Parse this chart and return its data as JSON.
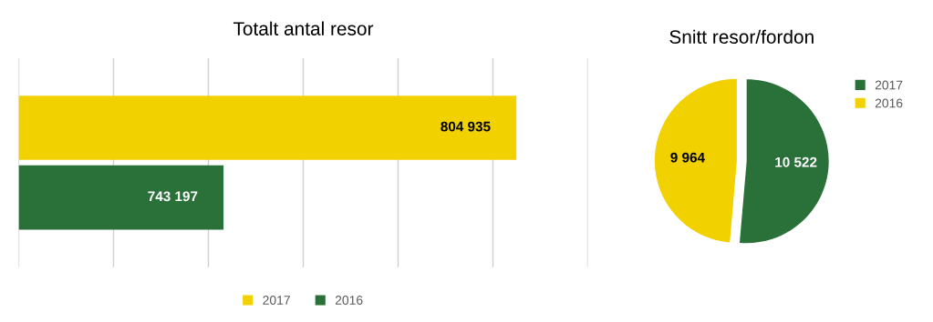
{
  "chart_data": [
    {
      "type": "bar",
      "title": "Totalt antal resor",
      "orientation": "horizontal",
      "categories": [
        null
      ],
      "series": [
        {
          "name": "2017",
          "color": "#f2d100",
          "values": [
            804935
          ]
        },
        {
          "name": "2016",
          "color": "#2a7139",
          "values": [
            743197
          ]
        }
      ],
      "xlim": [
        700000,
        820000
      ],
      "xticks": [
        {
          "value": 700000,
          "label": null
        },
        {
          "value": 720000,
          "label": null
        },
        {
          "value": 740000,
          "label": null
        },
        {
          "value": 760000,
          "label": null
        },
        {
          "value": 780000,
          "label": null
        },
        {
          "value": 800000,
          "label": null
        },
        {
          "value": 820000,
          "label": null
        }
      ],
      "grid": "x",
      "legend": "bottom",
      "data_labels": true,
      "value_labels": [
        "804 935",
        "743 197"
      ]
    },
    {
      "type": "pie",
      "title": "Snitt resor/fordon",
      "categories": [
        "2017",
        "2016"
      ],
      "values": [
        10522,
        9964
      ],
      "colors": [
        "#2a7139",
        "#f2d100"
      ],
      "value_labels": [
        "10 522",
        "9 964"
      ],
      "legend": "top right"
    }
  ]
}
